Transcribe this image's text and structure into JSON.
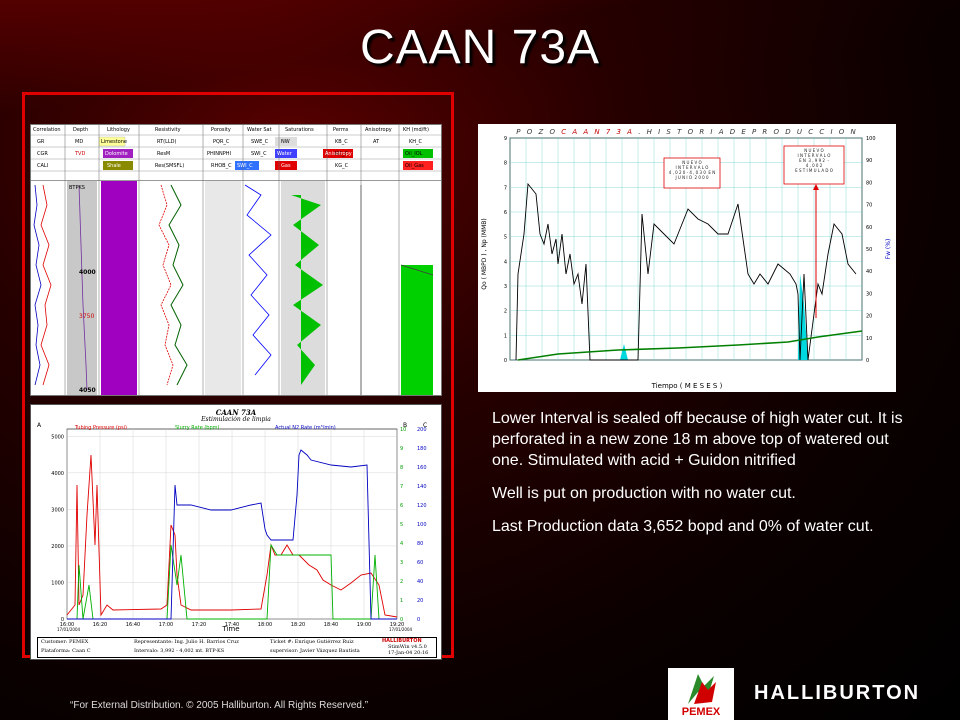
{
  "slide": {
    "title": "CAAN 73A",
    "copyright": "“For External Distribution. © 2005 Halliburton. All Rights Reserved.”",
    "bullets": [
      "Lower Interval is sealed off because of high water cut. It is perforated in a new zone  18 m above top of watered out one. Stimulated with acid + Guidon nitrified",
      "Well is put on production with no water cut.",
      "Last Production data 3,652 bopd and 0% of water cut."
    ],
    "logos": {
      "pemex": "PEMEX",
      "halliburton": "HALLIBURTON"
    },
    "colors": {
      "frame": "#e00000",
      "background": "#260000"
    }
  },
  "log": {
    "headers": [
      "Correlation",
      "Depth",
      "Lithology",
      "Resistivity",
      "Porosity",
      "Water Sat",
      "Saturations",
      "Perms",
      "Anisotropy",
      "KH (md/ft)"
    ],
    "row1": [
      "GR",
      "MD",
      "Limestone",
      "RT(LLD)",
      "PQR_C",
      "SWE_C",
      "NW",
      "KB_C",
      "AT",
      "KH_C"
    ],
    "row2": [
      "CGR",
      "TVD",
      "Dolomite",
      "ResM",
      "PHINNPHI",
      "SWI_C",
      "Water",
      "KO_C",
      "Anisotropy",
      "Oil_IOL"
    ],
    "row3": [
      "CALI",
      "BTPKS",
      "Shale",
      "Res(SMSFL)",
      "RHOB_C",
      "SWI_C",
      "Gas",
      "KG_C",
      "",
      "Oil_Gas"
    ],
    "depth_labels": [
      "BTPKS",
      "4000",
      "3750",
      "4050"
    ]
  },
  "history": {
    "title_prefix": "P O Z O ",
    "title_well": "C A A N  7 3 A",
    "title_suffix": " .  H I S T O R I A  D E  P R O D U C C I O N",
    "ylabel": "Qo ( MBPD ) ,  Np (MMB)",
    "y2label": "Fw (%)",
    "xlabel": "Tiempo ( M E S E S )",
    "annotation1": "N U E V O\nI N T E R V A L O\n4 , 0 2 0 - 4 , 0 3 0  E N\nJ U N I O  2 0 0 0",
    "annotation2": "N U E V O\nI N T E R V A L O\nE N  3 , 9 9 2  -\n4 , 0 0 2\nE S T I M U L A D O",
    "y_ticks": [
      "0",
      "1",
      "2",
      "3",
      "4",
      "5",
      "6",
      "7",
      "8",
      "9"
    ],
    "y2_ticks": [
      "0",
      "10",
      "20",
      "30",
      "40",
      "50",
      "60",
      "70",
      "80",
      "90",
      "100"
    ]
  },
  "stim": {
    "title": "CAAN 73A",
    "subtitle": "Estimulación de limpia",
    "legend": [
      {
        "label": "Tubing Pressure (psi)",
        "key": "A",
        "color": "#e00000"
      },
      {
        "label": "Slurry Rate (bpm)",
        "key": "A",
        "color": "#00b000"
      },
      {
        "label": "Actual N2 Rate (m³/min)",
        "key": "C",
        "color": "#0000c0"
      }
    ],
    "y_ticks": [
      "0",
      "1000",
      "2000",
      "3000",
      "4000",
      "5000"
    ],
    "y2_ticks": [
      "0",
      "1",
      "2",
      "3",
      "4",
      "5",
      "6",
      "7",
      "8",
      "9",
      "10"
    ],
    "y3_ticks": [
      "0",
      "20",
      "40",
      "60",
      "80",
      "100",
      "120",
      "140",
      "160",
      "180",
      "200"
    ],
    "x_ticks": [
      "16:00",
      "16:20",
      "16:40",
      "17:00",
      "17:20",
      "17:40",
      "18:00",
      "18:20",
      "18:40",
      "19:00",
      "19:20"
    ],
    "x_date_start": "17/01/2004",
    "x_date_end": "17/01/2004",
    "xlabel": "Time",
    "footer": {
      "customer": "Customer:   PEMEX",
      "platform": "Plataforma:  Caan C",
      "rep": "Representante:  Ing. Julio H. Barrios Cruz",
      "interval": "Intervalo:        3,992 - 4,002  mt. BTP-KS",
      "ticket": "Ticket #:   Enrique Gutiérrez Ruiz",
      "supervisor": "supervisor:  Javier Vázquez Bautista",
      "brand": "HALLIBURTON",
      "version": "StimWin v4.5.0",
      "date": "17-Jan-04 20:16"
    }
  }
}
